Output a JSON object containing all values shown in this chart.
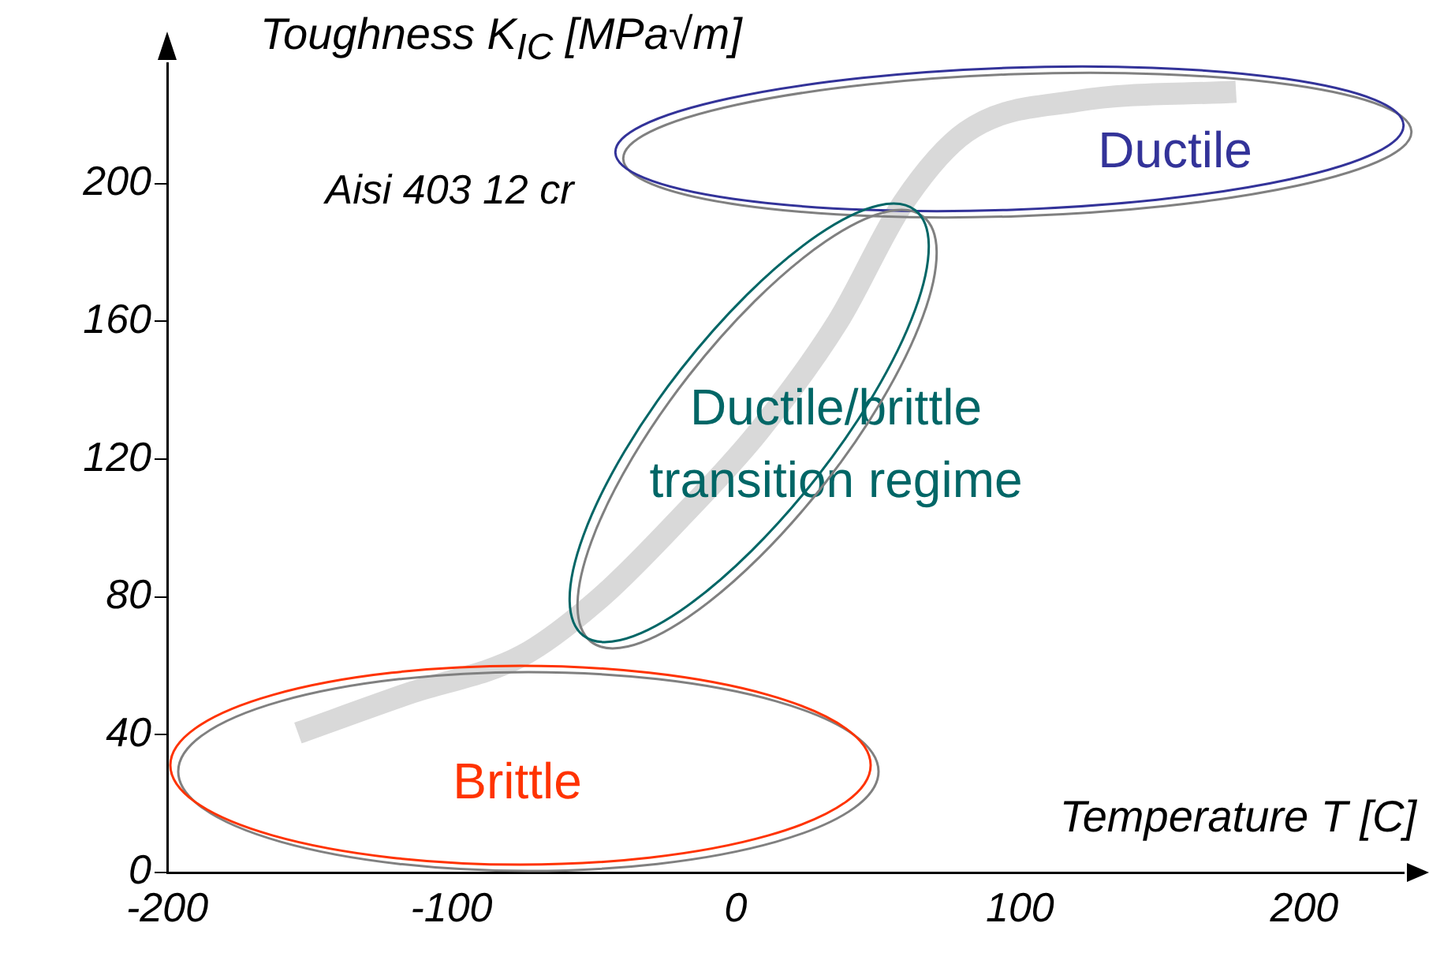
{
  "chart_data": {
    "type": "line",
    "ylabel": "Toughness K$_{IC}$ [MPa√m]",
    "xlabel": "Temperature T [C]",
    "x": [
      -154,
      -115,
      -75,
      -48,
      -20,
      8,
      36,
      59,
      81,
      120,
      176
    ],
    "series": [
      {
        "color": "#d9d9d9",
        "values": [
          40.5,
          52,
          63,
          79.5,
          102.5,
          128,
          160,
          194.5,
          215,
          224,
          226.7
        ]
      }
    ],
    "xlim": [
      -200,
      235
    ],
    "ylim": [
      0,
      235
    ],
    "xticks": [
      -200,
      -100,
      0,
      100,
      200
    ],
    "yticks": [
      0,
      40,
      80,
      120,
      160,
      200
    ],
    "grid": false,
    "legend": false,
    "marker": "none",
    "line_style": "solid",
    "annotations": [
      "Aisi 403 12 cr",
      "Ductile",
      "Ductile/brittle\ntransition regime",
      "Brittle"
    ]
  }
}
